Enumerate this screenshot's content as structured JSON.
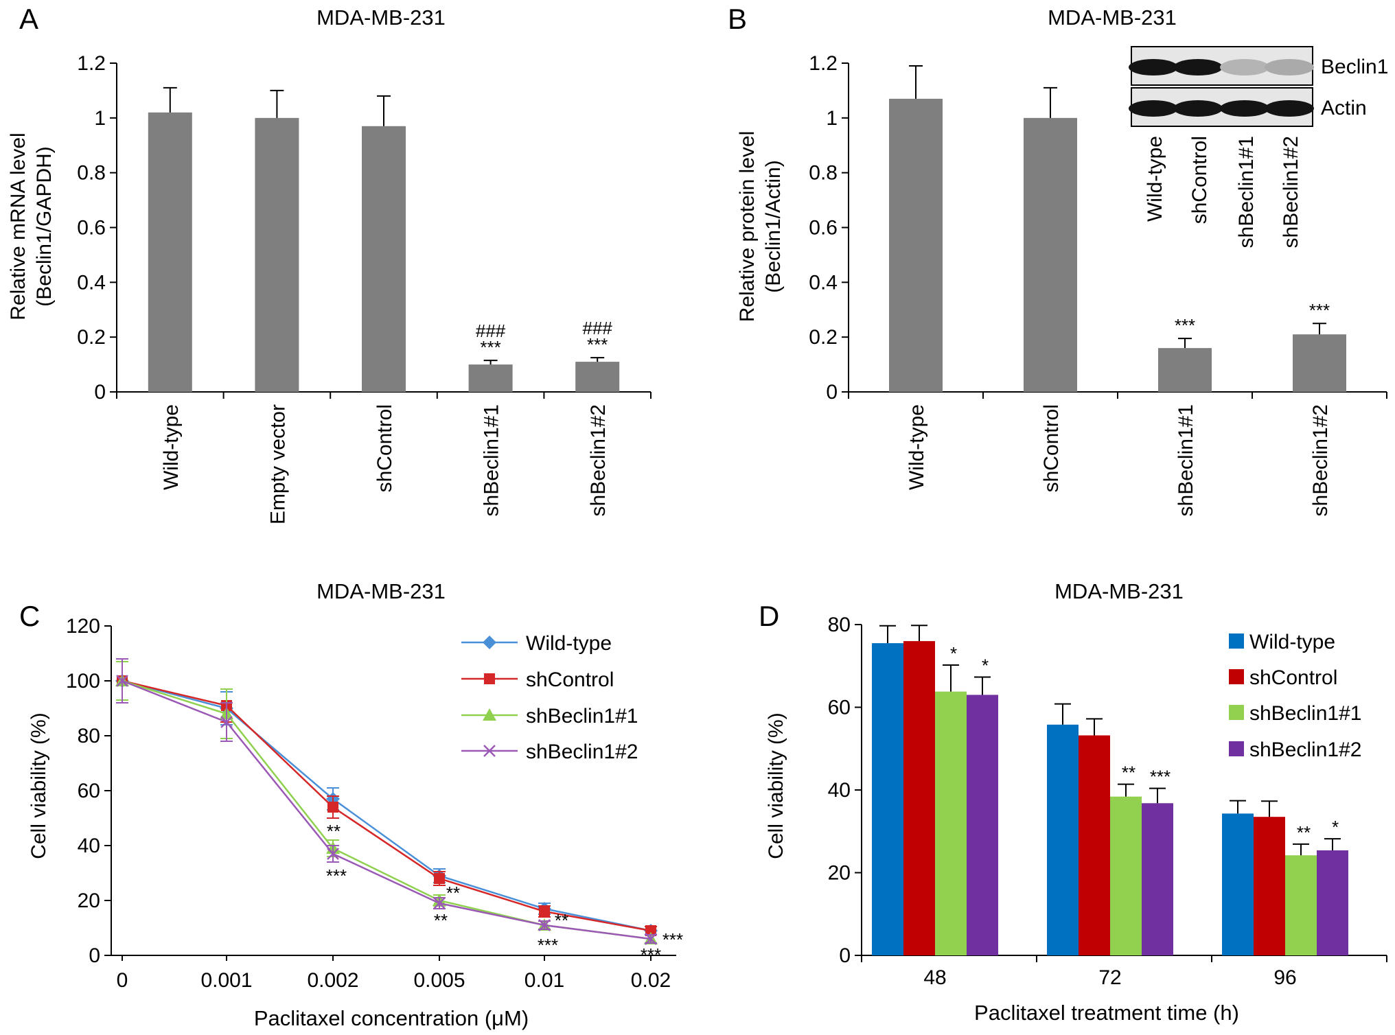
{
  "panels": {
    "A": {
      "letter": "A",
      "title": "MDA-MB-231",
      "ylabel_line1": "Relative mRNA level",
      "ylabel_line2": "(Beclin1/GAPDH)"
    },
    "B": {
      "letter": "B",
      "title": "MDA-MB-231",
      "ylabel_line1": "Relative protein level",
      "ylabel_line2": "(Beclin1/Actin)"
    },
    "C": {
      "letter": "C",
      "title": "MDA-MB-231",
      "ylabel": "Cell viability (%)",
      "xlabel": "Paclitaxel concentration (μM)"
    },
    "D": {
      "letter": "D",
      "title": "MDA-MB-231",
      "ylabel": "Cell viability (%)",
      "xlabel": "Paclitaxel treatment time (h)"
    }
  },
  "colors": {
    "bar_gray": "#7f7f7f",
    "wildtype_line": "#4a90d9",
    "shcontrol_line": "#d62728",
    "shbeclin1_line": "#8fd14f",
    "shbeclin2_line": "#9b59b6",
    "wildtype_bar": "#0070c0",
    "shcontrol_bar": "#c00000",
    "shbeclin1_bar": "#92d050",
    "shbeclin2_bar": "#7030a0"
  },
  "blot": {
    "lanes": [
      "Wild-type",
      "shControl",
      "shBeclin1#1",
      "shBeclin1#2"
    ],
    "rows": [
      {
        "label": "Beclin1",
        "intensities": [
          1.0,
          1.0,
          0.2,
          0.25
        ]
      },
      {
        "label": "Actin",
        "intensities": [
          1.0,
          1.0,
          1.0,
          1.0
        ]
      }
    ]
  },
  "chart_data": [
    {
      "panel": "A",
      "type": "bar",
      "title": "MDA-MB-231",
      "ylabel": "Relative mRNA level (Beclin1/GAPDH)",
      "categories": [
        "Wild-type",
        "Empty vector",
        "shControl",
        "shBeclin1#1",
        "shBeclin1#2"
      ],
      "values": [
        1.02,
        1.0,
        0.97,
        0.1,
        0.11
      ],
      "errors": [
        0.09,
        0.1,
        0.11,
        0.015,
        0.015
      ],
      "annotations": [
        "",
        "",
        "",
        "###\n***",
        "###\n***"
      ],
      "yticks": [
        "0",
        "0.2",
        "0.4",
        "0.6",
        "0.8",
        "1",
        "1.2"
      ],
      "ylim": [
        0,
        1.2
      ]
    },
    {
      "panel": "B",
      "type": "bar",
      "title": "MDA-MB-231",
      "ylabel": "Relative protein level (Beclin1/Actin)",
      "categories": [
        "Wild-type",
        "shControl",
        "shBeclin1#1",
        "shBeclin1#2"
      ],
      "values": [
        1.07,
        1.0,
        0.16,
        0.21
      ],
      "errors": [
        0.12,
        0.11,
        0.035,
        0.04
      ],
      "annotations": [
        "",
        "",
        "***",
        "***"
      ],
      "yticks": [
        "0",
        "0.2",
        "0.4",
        "0.6",
        "0.8",
        "1",
        "1.2"
      ],
      "ylim": [
        0,
        1.2
      ]
    },
    {
      "panel": "C",
      "type": "line",
      "title": "MDA-MB-231",
      "xlabel": "Paclitaxel concentration (μM)",
      "ylabel": "Cell viability (%)",
      "x": [
        "0",
        "0.001",
        "0.002",
        "0.005",
        "0.01",
        "0.02"
      ],
      "yticks": [
        "0",
        "20",
        "40",
        "60",
        "80",
        "100",
        "120"
      ],
      "ylim": [
        0,
        120
      ],
      "series": [
        {
          "name": "Wild-type",
          "marker": "diamond",
          "values": [
            100,
            90,
            57,
            29,
            17,
            9
          ],
          "errors": [
            7,
            6,
            4,
            2.5,
            2,
            1.5
          ]
        },
        {
          "name": "shControl",
          "marker": "square",
          "values": [
            100,
            91,
            54,
            28,
            16,
            9
          ],
          "errors": [
            7,
            6,
            4,
            2.5,
            2,
            1.5
          ]
        },
        {
          "name": "shBeclin1#1",
          "marker": "triangle",
          "values": [
            100,
            88,
            39,
            20,
            11,
            6
          ],
          "errors": [
            7,
            9,
            3,
            2,
            1.5,
            1.5
          ]
        },
        {
          "name": "shBeclin1#2",
          "marker": "x",
          "values": [
            100,
            85,
            37,
            19,
            11,
            6
          ],
          "errors": [
            8,
            7,
            3,
            2,
            1.5,
            1.5
          ]
        }
      ],
      "annotations": [
        {
          "x": "0.002",
          "above": "**",
          "below": "***"
        },
        {
          "x": "0.005",
          "above": "**",
          "below": "**"
        },
        {
          "x": "0.01",
          "above": "**",
          "below": "***"
        },
        {
          "x": "0.02",
          "above": "***",
          "below": "***"
        }
      ],
      "legend": "top-right"
    },
    {
      "panel": "D",
      "type": "bar",
      "title": "MDA-MB-231",
      "xlabel": "Paclitaxel treatment time (h)",
      "ylabel": "Cell viability (%)",
      "categories": [
        "48",
        "72",
        "96"
      ],
      "yticks": [
        "0",
        "20",
        "40",
        "60",
        "80"
      ],
      "ylim": [
        0,
        80
      ],
      "series": [
        {
          "name": "Wild-type",
          "values": [
            75.5,
            55.8,
            34.3
          ],
          "errors": [
            4.2,
            5.0,
            3.1
          ],
          "annotations": [
            "",
            "",
            ""
          ]
        },
        {
          "name": "shControl",
          "values": [
            76.0,
            53.2,
            33.5
          ],
          "errors": [
            3.8,
            4.0,
            3.8
          ],
          "annotations": [
            "",
            "",
            ""
          ]
        },
        {
          "name": "shBeclin1#1",
          "values": [
            63.8,
            38.4,
            24.2
          ],
          "errors": [
            6.4,
            3.0,
            2.7
          ],
          "annotations": [
            "*",
            "**",
            "**"
          ]
        },
        {
          "name": "shBeclin1#2",
          "values": [
            63.0,
            36.8,
            25.4
          ],
          "errors": [
            4.3,
            3.6,
            2.8
          ],
          "annotations": [
            "*",
            "***",
            "*"
          ]
        }
      ],
      "legend": "top-right"
    }
  ]
}
